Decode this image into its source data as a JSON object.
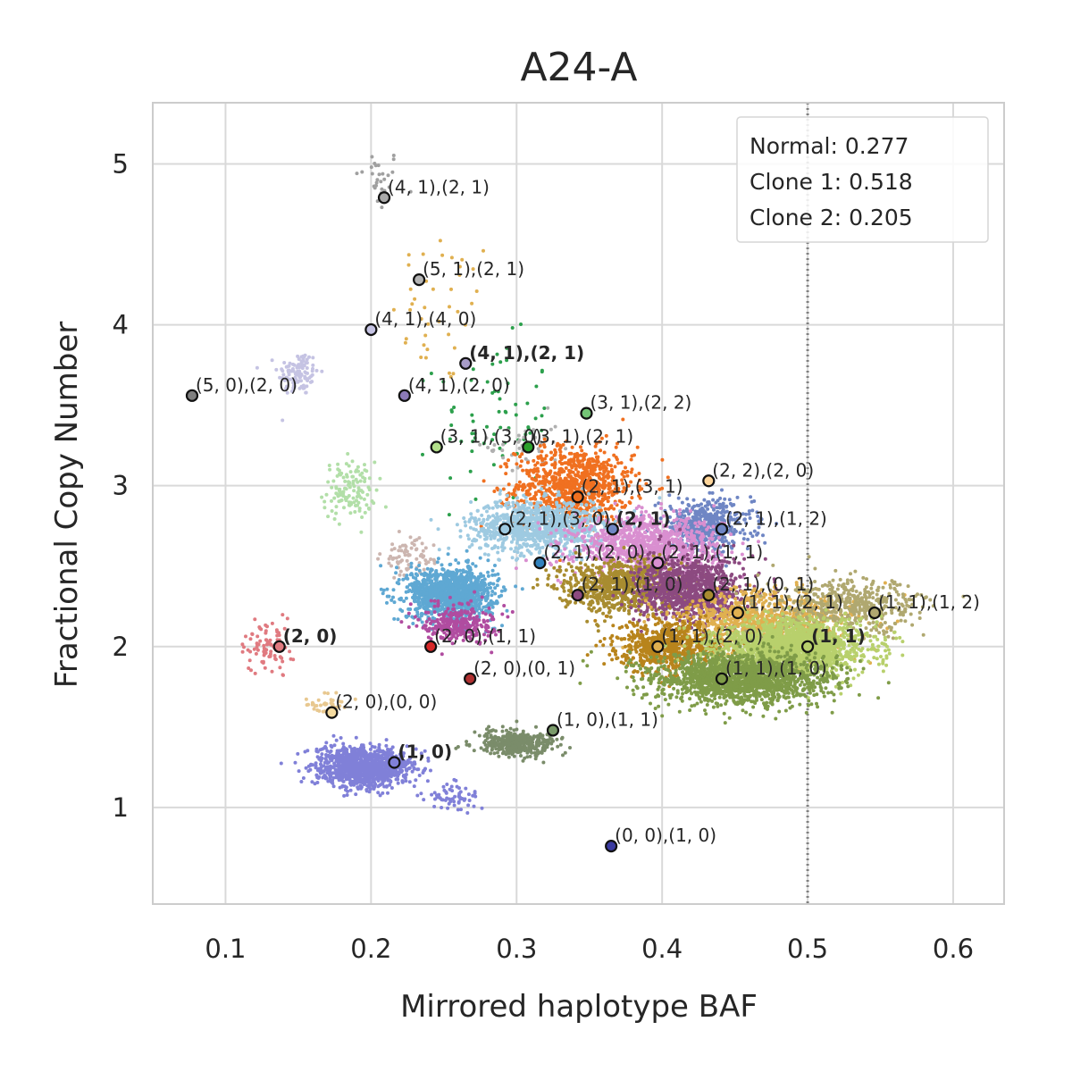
{
  "chart_data": {
    "type": "scatter",
    "title": "A24-A",
    "xlabel": "Mirrored haplotype BAF",
    "ylabel": "Fractional Copy Number",
    "xlim": [
      0.05,
      0.635
    ],
    "ylim": [
      0.4,
      5.38
    ],
    "xticks": [
      0.1,
      0.2,
      0.3,
      0.4,
      0.5,
      0.6
    ],
    "xtick_labels": [
      "0.1",
      "0.2",
      "0.3",
      "0.4",
      "0.5",
      "0.6"
    ],
    "yticks": [
      1,
      2,
      3,
      4,
      5
    ],
    "ytick_labels": [
      "1",
      "2",
      "3",
      "4",
      "5"
    ],
    "grid": true,
    "reference_line": {
      "x": 0.5,
      "style": "dotted"
    },
    "legend": {
      "placement": "top-right",
      "entries": [
        "Normal: 0.277",
        "Clone 1: 0.518",
        "Clone 2: 0.205"
      ]
    },
    "clusters": [
      {
        "color": "#a0a0a0",
        "cx": 0.205,
        "cy": 4.9,
        "sx": 0.008,
        "sy": 0.1,
        "n": 30
      },
      {
        "color": "#e0b050",
        "cx": 0.25,
        "cy": 4.1,
        "sx": 0.018,
        "sy": 0.25,
        "n": 40
      },
      {
        "color": "#c5c3e3",
        "cx": 0.15,
        "cy": 3.7,
        "sx": 0.007,
        "sy": 0.07,
        "n": 110
      },
      {
        "color": "#2ca04c",
        "cx": 0.285,
        "cy": 3.4,
        "sx": 0.02,
        "sy": 0.25,
        "n": 70
      },
      {
        "color": "#b0b0b0",
        "cx": 0.305,
        "cy": 3.25,
        "sx": 0.012,
        "sy": 0.1,
        "n": 40
      },
      {
        "color": "#b2dfa8",
        "cx": 0.185,
        "cy": 2.97,
        "sx": 0.009,
        "sy": 0.09,
        "n": 130
      },
      {
        "color": "#f07020",
        "cx": 0.34,
        "cy": 3.0,
        "sx": 0.02,
        "sy": 0.12,
        "n": 900
      },
      {
        "color": "#9ecae1",
        "cx": 0.315,
        "cy": 2.75,
        "sx": 0.023,
        "sy": 0.08,
        "n": 1000
      },
      {
        "color": "#6f86c4",
        "cx": 0.43,
        "cy": 2.75,
        "sx": 0.016,
        "sy": 0.08,
        "n": 500
      },
      {
        "color": "#d98fd0",
        "cx": 0.39,
        "cy": 2.62,
        "sx": 0.025,
        "sy": 0.09,
        "n": 1000
      },
      {
        "color": "#ccb6b0",
        "cx": 0.225,
        "cy": 2.55,
        "sx": 0.009,
        "sy": 0.06,
        "n": 70
      },
      {
        "color": "#5fa8d3",
        "cx": 0.255,
        "cy": 2.33,
        "sx": 0.015,
        "sy": 0.08,
        "n": 1200
      },
      {
        "color": "#a88c30",
        "cx": 0.37,
        "cy": 2.38,
        "sx": 0.02,
        "sy": 0.08,
        "n": 800
      },
      {
        "color": "#8c4a80",
        "cx": 0.42,
        "cy": 2.35,
        "sx": 0.018,
        "sy": 0.1,
        "n": 1000
      },
      {
        "color": "#b04ca0",
        "cx": 0.26,
        "cy": 2.15,
        "sx": 0.012,
        "sy": 0.06,
        "n": 300
      },
      {
        "color": "#e07a80",
        "cx": 0.13,
        "cy": 2.0,
        "sx": 0.008,
        "sy": 0.08,
        "n": 90
      },
      {
        "color": "#e0b050",
        "cx": 0.47,
        "cy": 2.15,
        "sx": 0.03,
        "sy": 0.1,
        "n": 900
      },
      {
        "color": "#b0a870",
        "cx": 0.53,
        "cy": 2.25,
        "sx": 0.025,
        "sy": 0.08,
        "n": 500
      },
      {
        "color": "#b8841c",
        "cx": 0.405,
        "cy": 2.0,
        "sx": 0.018,
        "sy": 0.08,
        "n": 700
      },
      {
        "color": "#b8d06c",
        "cx": 0.49,
        "cy": 2.0,
        "sx": 0.025,
        "sy": 0.08,
        "n": 1800
      },
      {
        "color": "#7f9c48",
        "cx": 0.455,
        "cy": 1.8,
        "sx": 0.03,
        "sy": 0.08,
        "n": 1700
      },
      {
        "color": "#e8c890",
        "cx": 0.17,
        "cy": 1.65,
        "sx": 0.008,
        "sy": 0.04,
        "n": 40
      },
      {
        "color": "#7a8c6a",
        "cx": 0.3,
        "cy": 1.4,
        "sx": 0.014,
        "sy": 0.04,
        "n": 400
      },
      {
        "color": "#8080d8",
        "cx": 0.195,
        "cy": 1.25,
        "sx": 0.016,
        "sy": 0.06,
        "n": 1100
      },
      {
        "color": "#8080d8",
        "cx": 0.255,
        "cy": 1.07,
        "sx": 0.01,
        "sy": 0.05,
        "n": 60
      }
    ],
    "annotations": [
      {
        "label": "(4, 1),(2, 1)",
        "x": 0.209,
        "y": 4.79,
        "color": "#a9a9a9",
        "bold": false
      },
      {
        "label": "(5, 1),(2, 1)",
        "x": 0.233,
        "y": 4.28,
        "color": "#b5b5b5",
        "bold": false
      },
      {
        "label": "(4, 1),(4, 0)",
        "x": 0.2,
        "y": 3.97,
        "color": "#c5c3e3",
        "bold": false
      },
      {
        "label": "(4, 1),(2, 1)",
        "x": 0.265,
        "y": 3.76,
        "color": "#a89cc8",
        "bold": true
      },
      {
        "label": "(5, 0),(2, 0)",
        "x": 0.077,
        "y": 3.56,
        "color": "#7f7f7f",
        "bold": false
      },
      {
        "label": "(4, 1),(2, 0)",
        "x": 0.223,
        "y": 3.56,
        "color": "#8c7ab8",
        "bold": false
      },
      {
        "label": "(3, 1),(2, 2)",
        "x": 0.348,
        "y": 3.45,
        "color": "#74c476",
        "bold": false
      },
      {
        "label": "(3, 1),(3, 0)",
        "x": 0.245,
        "y": 3.24,
        "color": "#b2df8a",
        "bold": false
      },
      {
        "label": "(3, 1),(2, 1)",
        "x": 0.308,
        "y": 3.24,
        "color": "#2ca02c",
        "bold": false
      },
      {
        "label": "(2, 2),(2, 0)",
        "x": 0.432,
        "y": 3.03,
        "color": "#fdd59a",
        "bold": false
      },
      {
        "label": "(2, 1),(3, 1)",
        "x": 0.342,
        "y": 2.93,
        "color": "#f07020",
        "bold": false
      },
      {
        "label": "(2, 1),(3, 0)",
        "x": 0.292,
        "y": 2.73,
        "color": "#9ecae1",
        "bold": false
      },
      {
        "label": "(2, 1)",
        "x": 0.366,
        "y": 2.73,
        "color": "#6f86c4",
        "bold": true
      },
      {
        "label": "(2, 1),(1, 2)",
        "x": 0.441,
        "y": 2.73,
        "color": "#6f86c4",
        "bold": false
      },
      {
        "label": "(2, 1),(2, 0)",
        "x": 0.316,
        "y": 2.52,
        "color": "#3182bd",
        "bold": false
      },
      {
        "label": "(2, 1),(1, 1)",
        "x": 0.397,
        "y": 2.52,
        "color": "#d98fd0",
        "bold": false
      },
      {
        "label": "(2, 1),(1, 0)",
        "x": 0.342,
        "y": 2.32,
        "color": "#8c4a80",
        "bold": false
      },
      {
        "label": "(2, 1),(0, 1)",
        "x": 0.432,
        "y": 2.32,
        "color": "#a88c30",
        "bold": false
      },
      {
        "label": "(1, 1),(2, 1)",
        "x": 0.452,
        "y": 2.21,
        "color": "#e0b050",
        "bold": false
      },
      {
        "label": "(1, 1),(1, 2)",
        "x": 0.546,
        "y": 2.21,
        "color": "#b0a870",
        "bold": false
      },
      {
        "label": "(2, 0)",
        "x": 0.137,
        "y": 2.0,
        "color": "#e07a80",
        "bold": true
      },
      {
        "label": "(2, 0),(1, 1)",
        "x": 0.241,
        "y": 2.0,
        "color": "#d62728",
        "bold": false
      },
      {
        "label": "(1, 1),(2, 0)",
        "x": 0.397,
        "y": 2.0,
        "color": "#e0b050",
        "bold": false
      },
      {
        "label": "(1, 1)",
        "x": 0.5,
        "y": 2.0,
        "color": "#b8d06c",
        "bold": true
      },
      {
        "label": "(2, 0),(0, 1)",
        "x": 0.268,
        "y": 1.8,
        "color": "#b03030",
        "bold": false
      },
      {
        "label": "(1, 1),(1, 0)",
        "x": 0.441,
        "y": 1.8,
        "color": "#7f9c48",
        "bold": false
      },
      {
        "label": "(2, 0),(0, 0)",
        "x": 0.173,
        "y": 1.59,
        "color": "#f5dba0",
        "bold": false
      },
      {
        "label": "(1, 0),(1, 1)",
        "x": 0.325,
        "y": 1.48,
        "color": "#7a9a6a",
        "bold": false
      },
      {
        "label": "(1, 0)",
        "x": 0.216,
        "y": 1.28,
        "color": "#8080d8",
        "bold": true
      },
      {
        "label": "(0, 0),(1, 0)",
        "x": 0.365,
        "y": 0.76,
        "color": "#3a3aa0",
        "bold": false
      }
    ]
  }
}
